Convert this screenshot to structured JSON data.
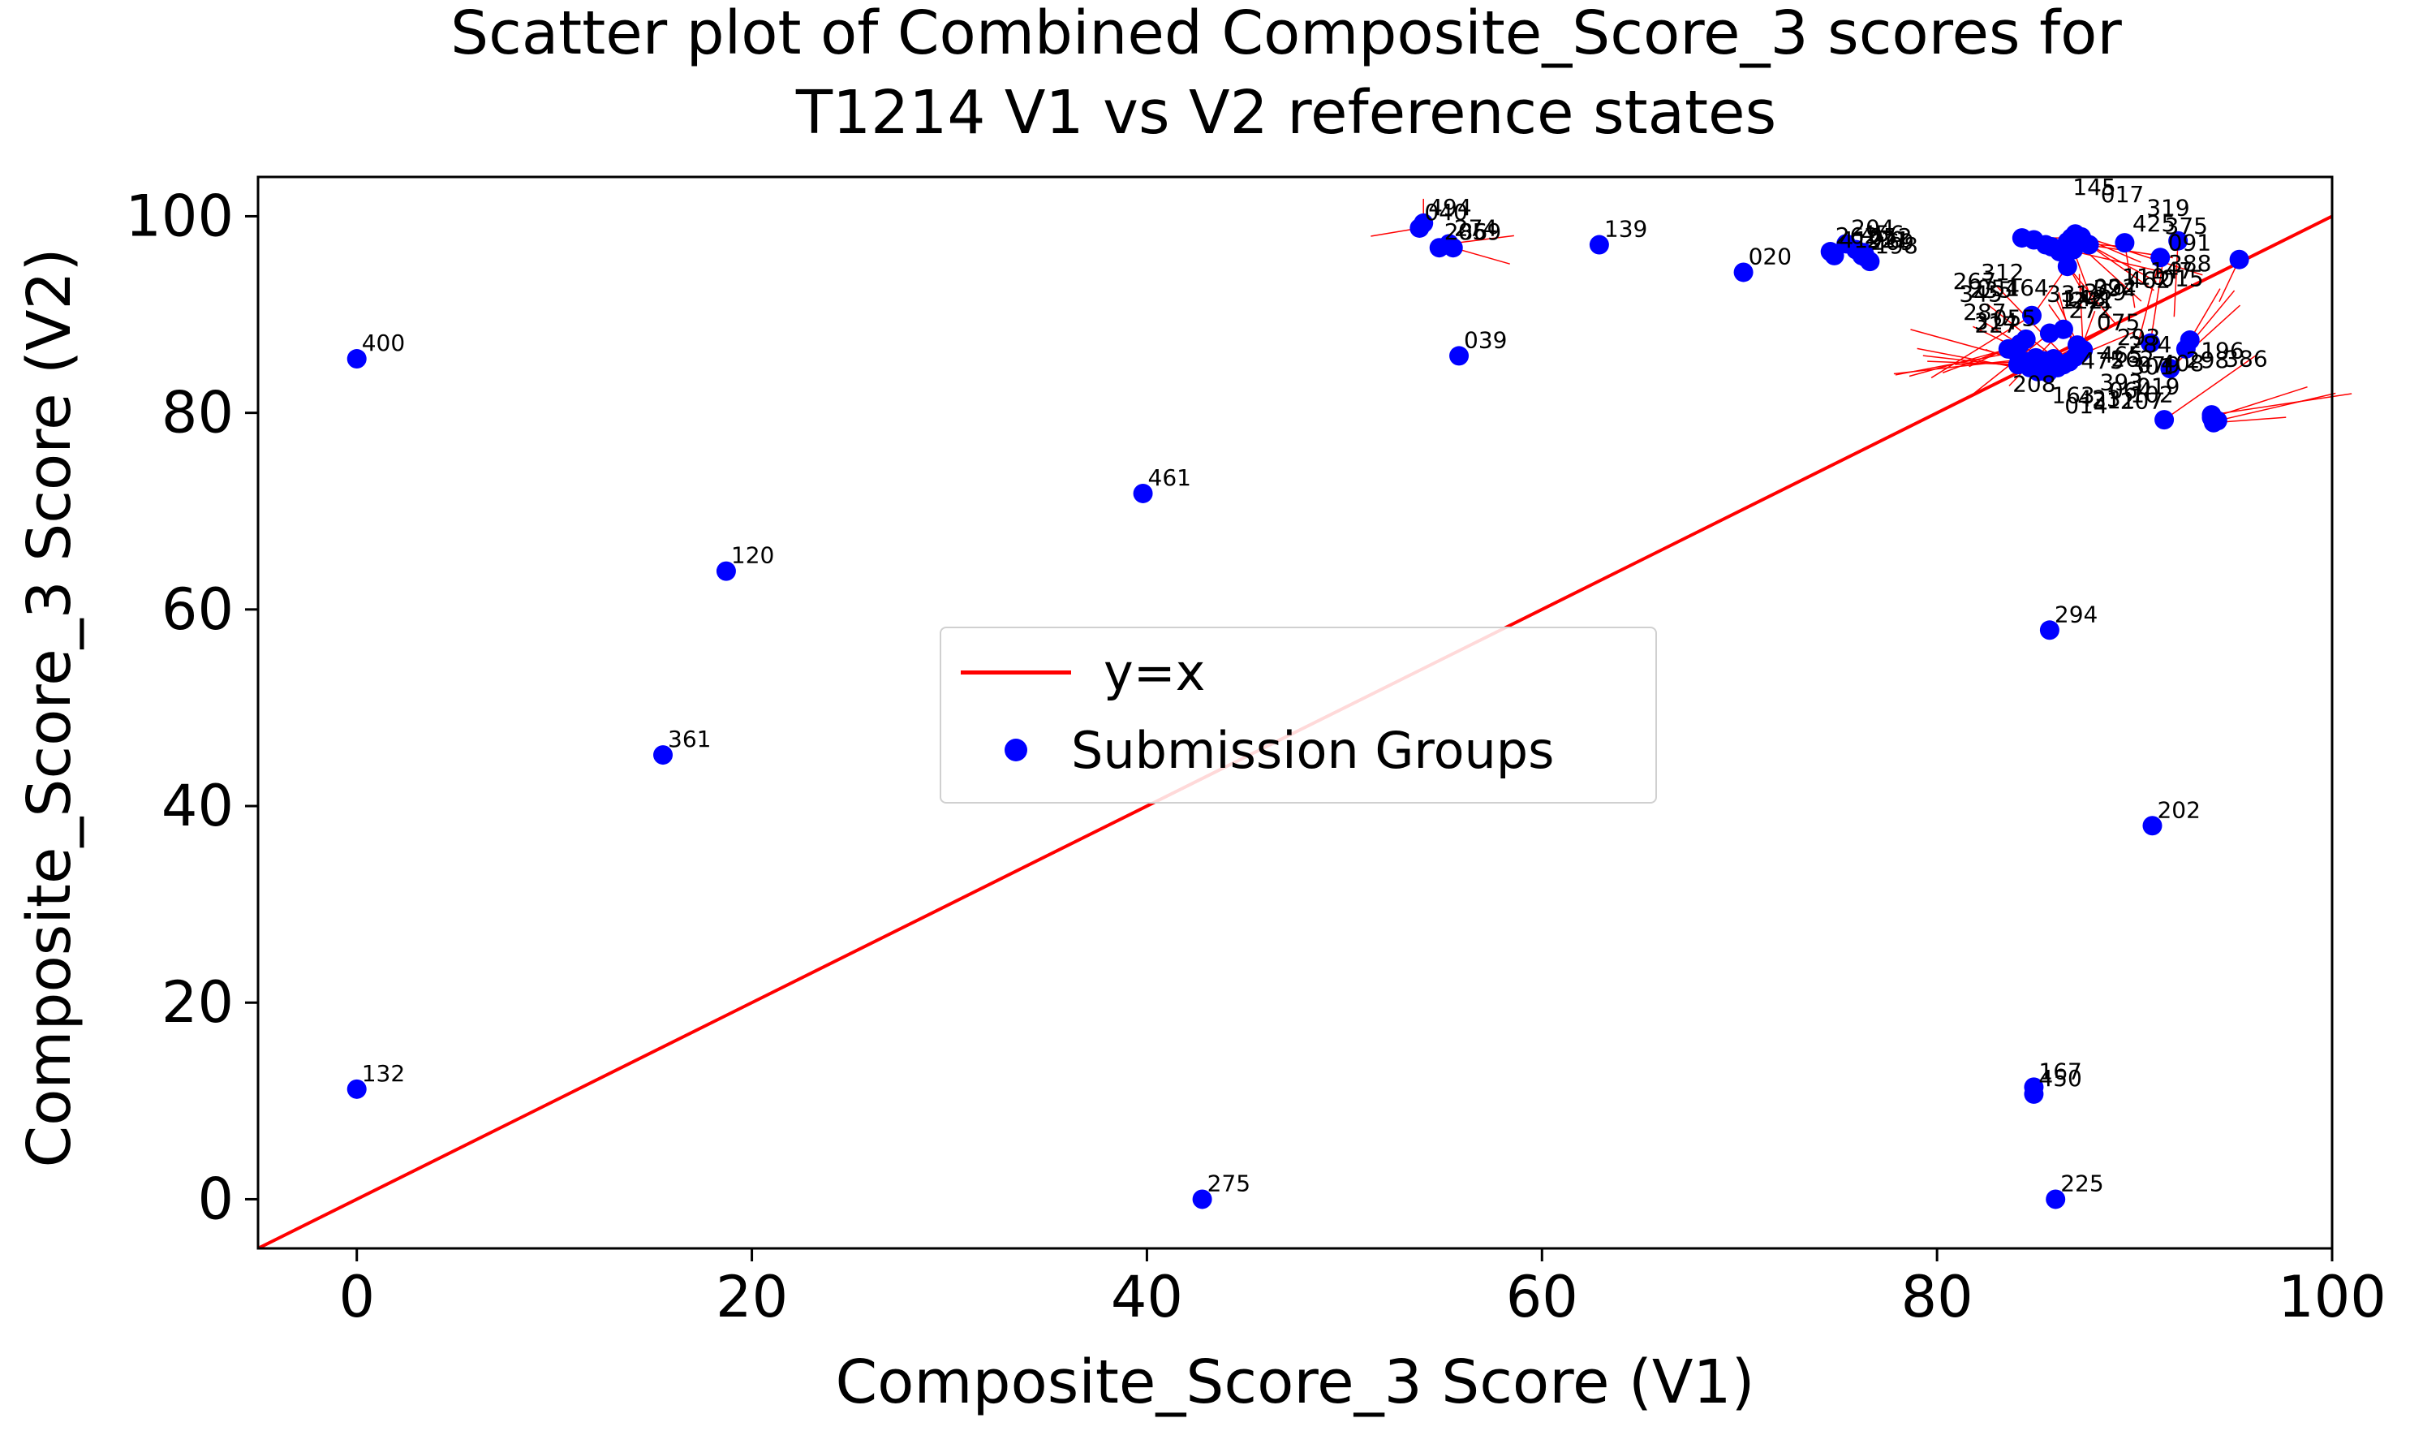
{
  "chart_data": {
    "type": "scatter",
    "title": "Scatter plot of Combined Composite_Score_3 scores for\nT1214 V1 vs V2 reference states",
    "xlabel": "Composite_Score_3 Score (V1)",
    "ylabel": "Composite_Score_3 Score (V2)",
    "xlim": [
      -5,
      100
    ],
    "ylim": [
      -5,
      104
    ],
    "xticks": [
      0,
      20,
      40,
      60,
      80,
      100
    ],
    "yticks": [
      0,
      20,
      40,
      60,
      80,
      100
    ],
    "grid": false,
    "legend_placement": "center",
    "colors": {
      "points": "#0000ff",
      "line": "#ff0000",
      "annotation_arrow": "#ff0000"
    },
    "line": {
      "name": "y=x",
      "x": [
        -5,
        100
      ],
      "y": [
        -5,
        100
      ]
    },
    "series_name": "Submission Groups",
    "points": [
      {
        "label": "400",
        "x": 0,
        "y": 85.5
      },
      {
        "label": "132",
        "x": 0,
        "y": 11.2
      },
      {
        "label": "361",
        "x": 15.5,
        "y": 45.2
      },
      {
        "label": "120",
        "x": 18.7,
        "y": 63.9
      },
      {
        "label": "461",
        "x": 39.8,
        "y": 71.8
      },
      {
        "label": "275",
        "x": 42.8,
        "y": 0
      },
      {
        "label": "494",
        "x": 54.0,
        "y": 99.3
      },
      {
        "label": "040",
        "x": 53.8,
        "y": 98.8
      },
      {
        "label": "274",
        "x": 55.3,
        "y": 97.2
      },
      {
        "label": "286",
        "x": 54.8,
        "y": 96.8
      },
      {
        "label": "059",
        "x": 55.5,
        "y": 96.8
      },
      {
        "label": "039",
        "x": 55.8,
        "y": 85.8
      },
      {
        "label": "139",
        "x": 62.9,
        "y": 97.1
      },
      {
        "label": "020",
        "x": 70.2,
        "y": 94.3
      },
      {
        "label": "262",
        "x": 74.6,
        "y": 96.4
      },
      {
        "label": "419",
        "x": 74.8,
        "y": 96.0
      },
      {
        "label": "204",
        "x": 75.4,
        "y": 97.2
      },
      {
        "label": "456",
        "x": 75.9,
        "y": 96.6
      },
      {
        "label": "052",
        "x": 76.3,
        "y": 96.3
      },
      {
        "label": "198",
        "x": 76.6,
        "y": 95.4
      },
      {
        "label": "269",
        "x": 76.4,
        "y": 95.8
      },
      {
        "label": "221",
        "x": 76.2,
        "y": 96.0
      },
      {
        "label": "145",
        "x": 84.3,
        "y": 97.8
      },
      {
        "label": "017",
        "x": 84.9,
        "y": 97.6
      },
      {
        "label": "319",
        "x": 86.6,
        "y": 97.4
      },
      {
        "label": "425",
        "x": 85.5,
        "y": 97.1
      },
      {
        "label": "375",
        "x": 87.0,
        "y": 98.2
      },
      {
        "label": "091",
        "x": 87.3,
        "y": 97.9
      },
      {
        "label": "388",
        "x": 87.7,
        "y": 97.1
      },
      {
        "label": "147",
        "x": 87.4,
        "y": 97.5
      },
      {
        "label": "110",
        "x": 86.8,
        "y": 97.8
      },
      {
        "label": "369",
        "x": 85.8,
        "y": 96.9
      },
      {
        "label": "241",
        "x": 86.2,
        "y": 96.4
      },
      {
        "label": "148",
        "x": 86.9,
        "y": 96.6
      },
      {
        "label": "394",
        "x": 89.5,
        "y": 97.3
      },
      {
        "label": "462",
        "x": 92.2,
        "y": 97.5
      },
      {
        "label": "022",
        "x": 91.3,
        "y": 95.8
      },
      {
        "label": "015",
        "x": 95.3,
        "y": 95.6
      },
      {
        "label": "312",
        "x": 86.6,
        "y": 94.9
      },
      {
        "label": "314",
        "x": 86.4,
        "y": 88.5
      },
      {
        "label": "287",
        "x": 85.7,
        "y": 88.1
      },
      {
        "label": "267",
        "x": 84.8,
        "y": 89.9
      },
      {
        "label": "345",
        "x": 84.5,
        "y": 87.5
      },
      {
        "label": "235",
        "x": 84.2,
        "y": 87.0
      },
      {
        "label": "051",
        "x": 83.6,
        "y": 86.5
      },
      {
        "label": "464",
        "x": 84.0,
        "y": 86.2
      },
      {
        "label": "331",
        "x": 85.0,
        "y": 85.6
      },
      {
        "label": "122",
        "x": 84.6,
        "y": 85.2
      },
      {
        "label": "272",
        "x": 84.1,
        "y": 84.9
      },
      {
        "label": "075",
        "x": 84.7,
        "y": 84.6
      },
      {
        "label": "293",
        "x": 85.1,
        "y": 84.2
      },
      {
        "label": "284",
        "x": 85.3,
        "y": 84.8
      },
      {
        "label": "079",
        "x": 85.6,
        "y": 84.1
      },
      {
        "label": "301",
        "x": 85.4,
        "y": 85.3
      },
      {
        "label": "019",
        "x": 86.1,
        "y": 84.6
      },
      {
        "label": "102",
        "x": 86.4,
        "y": 84.9
      },
      {
        "label": "207",
        "x": 86.7,
        "y": 85.2
      },
      {
        "label": "064",
        "x": 87.1,
        "y": 86.9
      },
      {
        "label": "311",
        "x": 87.3,
        "y": 86.2
      },
      {
        "label": "014",
        "x": 87.0,
        "y": 85.7
      },
      {
        "label": "163",
        "x": 87.4,
        "y": 86.4
      },
      {
        "label": "393",
        "x": 90.8,
        "y": 87.1
      },
      {
        "label": "208",
        "x": 87.2,
        "y": 86.0
      },
      {
        "label": "262b",
        "x": 92.8,
        "y": 87.4
      },
      {
        "label": "465",
        "x": 92.6,
        "y": 86.5
      },
      {
        "label": "475",
        "x": 91.8,
        "y": 84.5
      },
      {
        "label": "423",
        "x": 91.5,
        "y": 79.3
      },
      {
        "label": "227",
        "x": 85.9,
        "y": 85.5
      },
      {
        "label": "055",
        "x": 86.2,
        "y": 85.0
      },
      {
        "label": "408",
        "x": 93.9,
        "y": 79.5
      },
      {
        "label": "298",
        "x": 94.2,
        "y": 79.2
      },
      {
        "label": "196",
        "x": 93.9,
        "y": 79.8
      },
      {
        "label": "386",
        "x": 94.0,
        "y": 79.0
      },
      {
        "label": "294",
        "x": 85.7,
        "y": 57.9
      },
      {
        "label": "202",
        "x": 90.9,
        "y": 38.0
      },
      {
        "label": "167",
        "x": 84.9,
        "y": 11.4
      },
      {
        "label": "450",
        "x": 84.9,
        "y": 10.7
      },
      {
        "label": "225",
        "x": 86.0,
        "y": 0
      }
    ],
    "visible_labels": [
      "400",
      "132",
      "361",
      "120",
      "461",
      "275",
      "494",
      "040",
      "274",
      "286",
      "059",
      "039",
      "139",
      "020",
      "262",
      "419",
      "204",
      "456",
      "052",
      "198",
      "269",
      "221",
      "145",
      "017",
      "319",
      "425",
      "375",
      "091",
      "388",
      "147",
      "110",
      "369",
      "241",
      "148",
      "394",
      "462",
      "022",
      "015",
      "312",
      "314",
      "287",
      "267",
      "345",
      "235",
      "051",
      "464",
      "331",
      "122",
      "272",
      "075",
      "293",
      "284",
      "079",
      "301",
      "019",
      "102",
      "207",
      "064",
      "311",
      "014",
      "163",
      "393",
      "208",
      "262",
      "465",
      "475",
      "423",
      "227",
      "055",
      "408",
      "298",
      "196",
      "386",
      "294",
      "202",
      "167",
      "450",
      "225"
    ]
  }
}
